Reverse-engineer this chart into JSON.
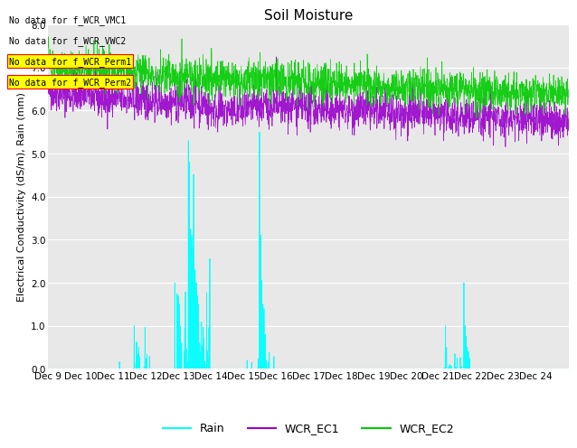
{
  "title": "Soil Moisture",
  "ylabel": "Electrical Conductivity (dS/m), Rain (mm)",
  "xlabel": "",
  "ylim": [
    0.0,
    8.0
  ],
  "yticks": [
    0.0,
    1.0,
    2.0,
    3.0,
    4.0,
    5.0,
    6.0,
    7.0,
    8.0
  ],
  "xtick_labels": [
    "Dec 9",
    "Dec 10",
    "Dec 11",
    "Dec 12",
    "Dec 13",
    "Dec 14",
    "Dec 15",
    "Dec 16",
    "Dec 17",
    "Dec 18",
    "Dec 19",
    "Dec 20",
    "Dec 21",
    "Dec 22",
    "Dec 23",
    "Dec 24"
  ],
  "no_data_texts": [
    "No data for f_WCR_VMC1",
    "No data for f_WCR_VWC2",
    "No data for f_WCR_Perm1",
    "No data for f_WCR_Perm2"
  ],
  "legend_entries": [
    "Rain",
    "WCR_EC1",
    "WCR_EC2"
  ],
  "rain_color": "cyan",
  "ec1_color": "#9900cc",
  "ec2_color": "#00cc00",
  "background_color": "#e8e8e8",
  "title_fontsize": 11,
  "label_fontsize": 8,
  "tick_fontsize": 7.5,
  "seed": 42,
  "n_points": 2304
}
